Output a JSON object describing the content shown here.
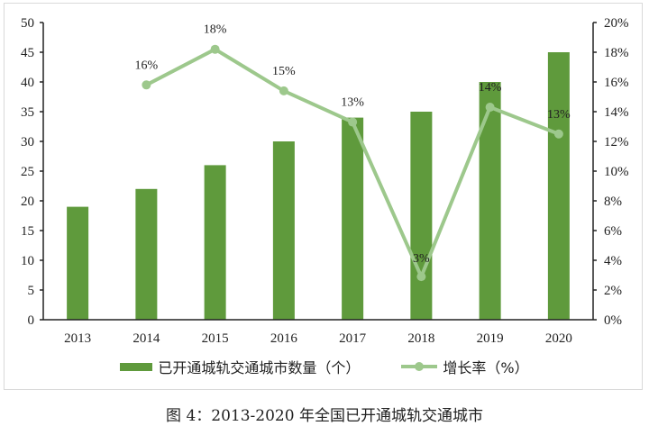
{
  "chart_data": {
    "type": "bar+line",
    "title": "",
    "caption": "图 4：2013-2020 年全国已开通城轨交通城市",
    "categories": [
      "2013",
      "2014",
      "2015",
      "2016",
      "2017",
      "2018",
      "2019",
      "2020"
    ],
    "series": [
      {
        "name": "已开通城轨交通城市数量（个）",
        "type": "bar",
        "axis": "left",
        "color": "#5f9a3c",
        "values": [
          19,
          22,
          26,
          30,
          34,
          35,
          40,
          45
        ]
      },
      {
        "name": "增长率（%）",
        "type": "line",
        "axis": "right",
        "color": "#9dc88c",
        "values": [
          null,
          15.8,
          18.2,
          15.4,
          13.3,
          2.9,
          14.3,
          12.5
        ],
        "labels": [
          "",
          "16%",
          "18%",
          "15%",
          "13%",
          "3%",
          "14%",
          "13%"
        ]
      }
    ],
    "y_left": {
      "ylim": [
        0,
        50
      ],
      "ticks": [
        "0",
        "5",
        "10",
        "15",
        "20",
        "25",
        "30",
        "35",
        "40",
        "45",
        "50"
      ]
    },
    "y_right": {
      "ylim": [
        0,
        20
      ],
      "ticks": [
        "0%",
        "2%",
        "4%",
        "6%",
        "8%",
        "10%",
        "12%",
        "14%",
        "16%",
        "18%",
        "20%"
      ]
    },
    "xlabel": "",
    "grid": false,
    "legend_position": "bottom"
  },
  "legend": {
    "bar_label": "已开通城轨交通城市数量（个）",
    "line_label": "增长率（%）"
  },
  "caption": "图 4：2013-2020 年全国已开通城轨交通城市"
}
